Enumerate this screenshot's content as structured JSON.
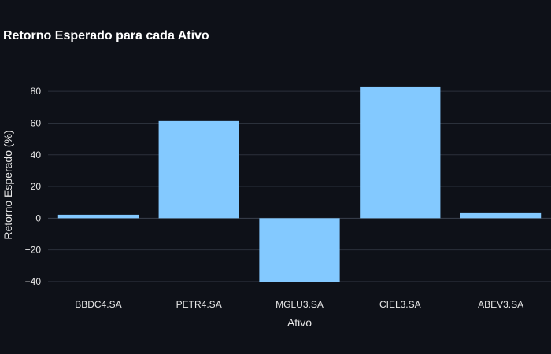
{
  "chart_data": {
    "type": "bar",
    "title": "Retorno Esperado para cada Ativo",
    "xlabel": "Ativo",
    "ylabel": "Retorno Esperado (%)",
    "categories": [
      "BBDC4.SA",
      "PETR4.SA",
      "MGLU3.SA",
      "CIEL3.SA",
      "ABEV3.SA"
    ],
    "values": [
      2.2,
      61.3,
      -40.4,
      83.1,
      3.2
    ],
    "ylim": [
      -46,
      92
    ],
    "yticks": [
      -40,
      -20,
      0,
      20,
      40,
      60,
      80
    ],
    "ytick_labels": [
      "−40",
      "−20",
      "0",
      "20",
      "40",
      "60",
      "80"
    ],
    "grid": true,
    "colors": {
      "background": "#0e1118",
      "bar": "#83c9ff",
      "grid": "#2b313b",
      "text": "#e8e8e8",
      "title": "#ffffff"
    }
  }
}
